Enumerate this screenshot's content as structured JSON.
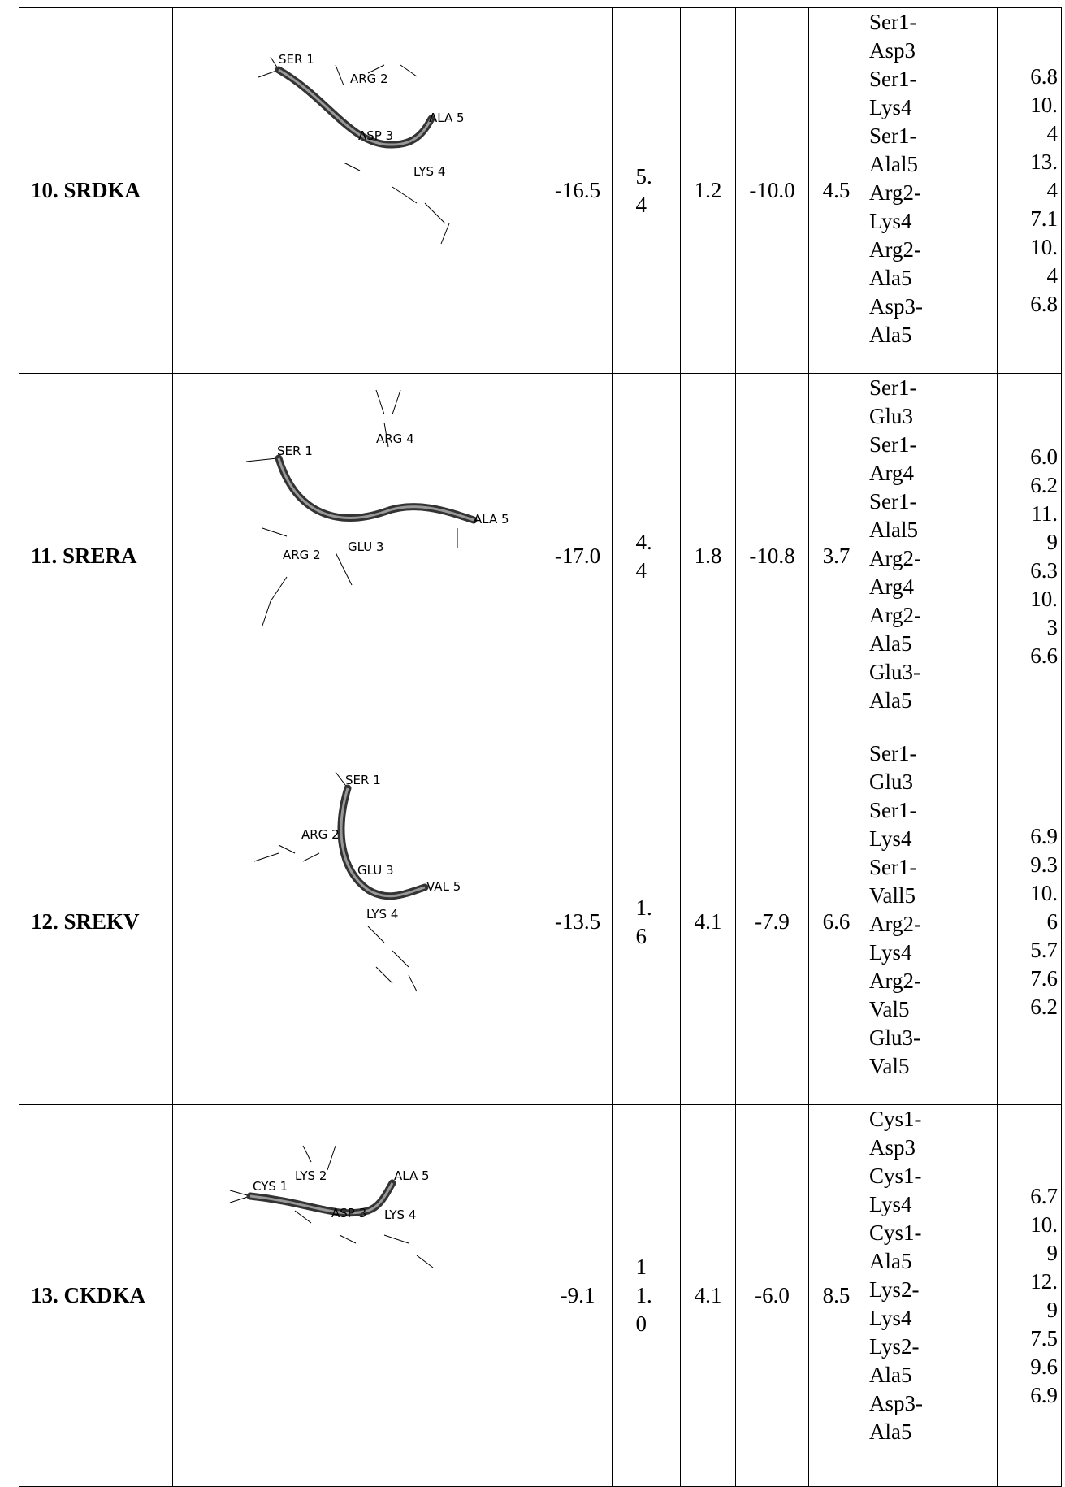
{
  "table": {
    "rows": [
      {
        "name": "10. SRDKA",
        "residues": [
          "SER 1",
          "ARG 2",
          "ASP 3",
          "ALA 5",
          "LYS 4"
        ],
        "values": [
          "-16.5",
          "5.4",
          "1.2",
          "-10.0",
          "4.5"
        ],
        "pairs": [
          "Ser1-Asp3",
          "Ser1-Lys4",
          "Ser1-Alal5",
          "Arg2-Lys4",
          "Arg2-Ala5",
          "Asp3-Ala5"
        ],
        "distances": [
          "6.8",
          "10.4",
          "13.4",
          "7.1",
          "10.4",
          "6.8"
        ]
      },
      {
        "name": "11. SRERA",
        "residues": [
          "SER 1",
          "ARG 4",
          "ALA 5",
          "GLU 3",
          "ARG 2"
        ],
        "values": [
          "-17.0",
          "4.4",
          "1.8",
          "-10.8",
          "3.7"
        ],
        "pairs": [
          "Ser1-Glu3",
          "Ser1-Arg4",
          "Ser1-Alal5",
          "Arg2-Arg4",
          "Arg2-Ala5",
          "Glu3-Ala5"
        ],
        "distances": [
          "6.0",
          "6.2",
          "11.9",
          "6.3",
          "10.3",
          "6.6"
        ]
      },
      {
        "name": "12. SREKV",
        "residues": [
          "SER 1",
          "ARG 2",
          "GLU 3",
          "VAL 5",
          "LYS 4"
        ],
        "values": [
          "-13.5",
          "1.6",
          "4.1",
          "-7.9",
          "6.6"
        ],
        "pairs": [
          "Ser1-Glu3",
          "Ser1-Lys4",
          "Ser1-Vall5",
          "Arg2-Lys4",
          "Arg2-Val5",
          "Glu3-Val5"
        ],
        "distances": [
          "6.9",
          "9.3",
          "10.6",
          "5.7",
          "7.6",
          "6.2"
        ]
      },
      {
        "name": "13. CKDKA",
        "residues": [
          "CYS 1",
          "LYS 2",
          "ALA 5",
          "ASP 3",
          "LYS 4"
        ],
        "values": [
          "-9.1",
          "11.0",
          "4.1",
          "-6.0",
          "8.5"
        ],
        "pairs": [
          "Cys1-Asp3",
          "Cys1-Lys4",
          "Cys1-Ala5",
          "Lys2-Lys4",
          "Lys2-Ala5",
          "Asp3-Ala5"
        ],
        "distances": [
          "6.7",
          "10.9",
          "12.9",
          "7.5",
          "9.6",
          "6.9"
        ]
      }
    ]
  }
}
